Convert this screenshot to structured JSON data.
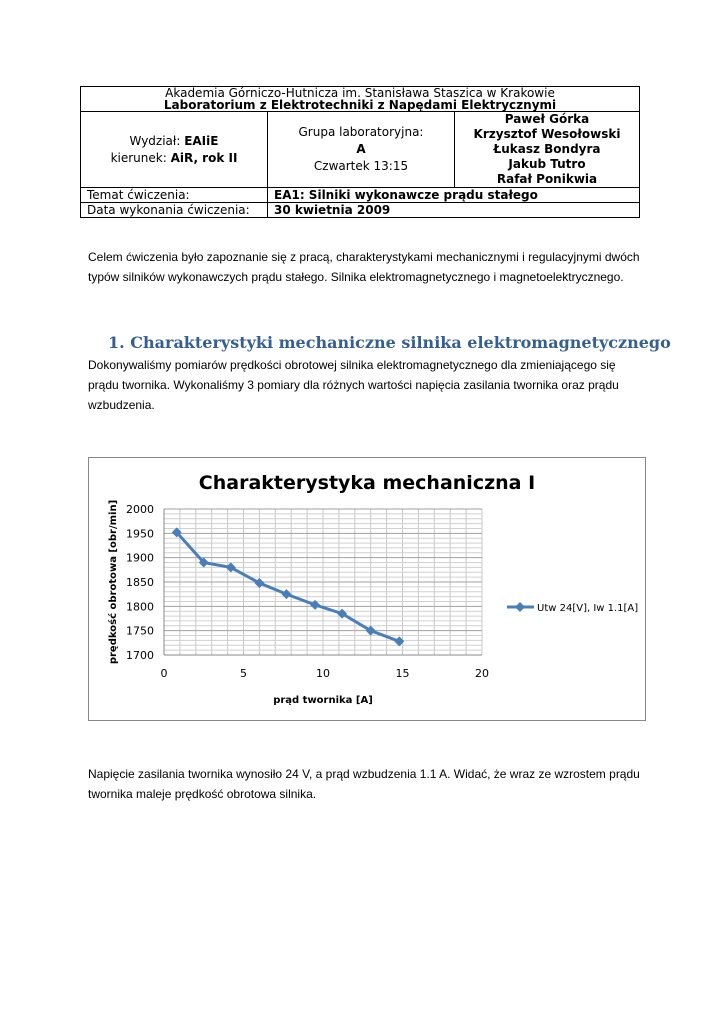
{
  "header": {
    "institution": "Akademia Górniczo-Hutnicza im. Stanisława Staszica w Krakowie",
    "lab": "Laboratorium z Elektrotechniki z Napędami Elektrycznymi",
    "faculty_label": "Wydział:",
    "faculty": "EAIiE",
    "major_label": "kierunek:",
    "major": "AiR, rok II",
    "group_label": "Grupa laboratoryjna:",
    "group": "A",
    "time": "Czwartek 13:15",
    "authors": [
      "Paweł Górka",
      "Krzysztof Wesołowski",
      "Łukasz Bondyra",
      "Jakub Tutro",
      "Rafał Ponikwia"
    ],
    "topic_label": "Temat ćwiczenia:",
    "topic": "EA1: Silniki wykonawcze prądu stałego",
    "date_label": "Data wykonania ćwiczenia:",
    "date": "30 kwietnia 2009"
  },
  "intro": "Celem ćwiczenia było zapoznanie się z pracą, charakterystykami mechanicznymi i regulacyjnymi dwóch typów silników wykonawczych prądu stałego. Silnika elektromagnetycznego i magnetoelektrycznego.",
  "section1": {
    "title": "1.  Charakterystyki mechaniczne silnika elektromagnetycznego",
    "text": "Dokonywaliśmy pomiarów prędkości obrotowej silnika elektromagnetycznego dla zmieniającego się prądu twornika. Wykonaliśmy 3 pomiary dla różnych wartości napięcia zasilania twornika oraz prądu wzbudzenia."
  },
  "conclusion": "Napięcie zasilania twornika wynosiło 24 V, a prąd wzbudzenia 1.1 A. Widać, że wraz ze wzrostem prądu twornika maleje prędkość obrotowa silnika.",
  "chart_data": {
    "type": "line",
    "title": "Charakterystyka mechaniczna I",
    "xlabel": "prąd twornika [A]",
    "ylabel": "prędkość obrotowa [obr/min]",
    "xlim": [
      0,
      20
    ],
    "ylim": [
      1700,
      2000
    ],
    "xticks": [
      "0",
      "5",
      "10",
      "15",
      "20"
    ],
    "yticks": [
      "1700",
      "1750",
      "1800",
      "1850",
      "1900",
      "1950",
      "2000"
    ],
    "grid": true,
    "legend_position": "right",
    "series": [
      {
        "name": "Utw 24[V], Iw 1.1[A]",
        "color": "#4a7ebb",
        "x": [
          0.8,
          2.5,
          4.2,
          6.0,
          7.7,
          9.5,
          11.2,
          13.0,
          14.8
        ],
        "y": [
          1952,
          1890,
          1880,
          1848,
          1825,
          1803,
          1785,
          1750,
          1728
        ]
      }
    ]
  }
}
